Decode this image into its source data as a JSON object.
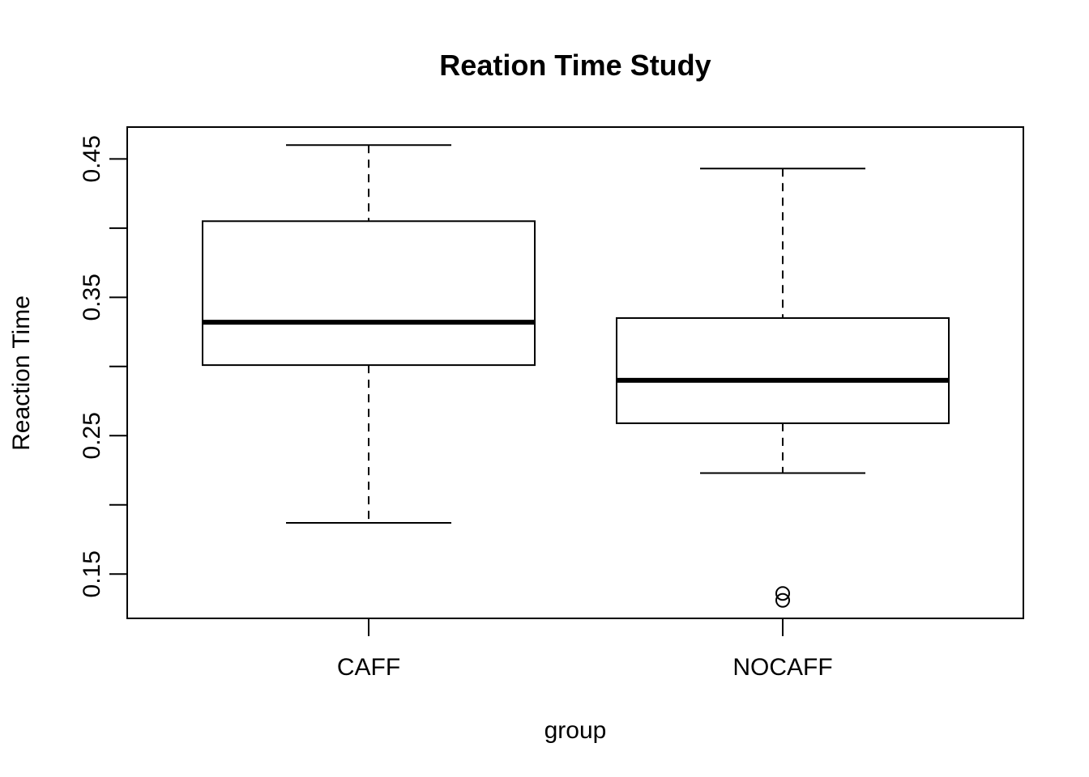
{
  "chart_data": {
    "type": "box",
    "title": "Reation Time Study",
    "xlabel": "group",
    "ylabel": "Reaction Time",
    "ylim": [
      0.118,
      0.473
    ],
    "yticks": [
      0.15,
      0.2,
      0.25,
      0.3,
      0.35,
      0.4,
      0.45
    ],
    "ytick_labels": [
      "0.15",
      "",
      "0.25",
      "",
      "0.35",
      "",
      "0.45"
    ],
    "categories": [
      "CAFF",
      "NOCAFF"
    ],
    "boxes": [
      {
        "name": "CAFF",
        "whisker_low": 0.187,
        "q1": 0.301,
        "median": 0.332,
        "q3": 0.405,
        "whisker_high": 0.46,
        "outliers": []
      },
      {
        "name": "NOCAFF",
        "whisker_low": 0.223,
        "q1": 0.259,
        "median": 0.29,
        "q3": 0.335,
        "whisker_high": 0.443,
        "outliers": [
          0.136,
          0.131
        ]
      }
    ]
  }
}
